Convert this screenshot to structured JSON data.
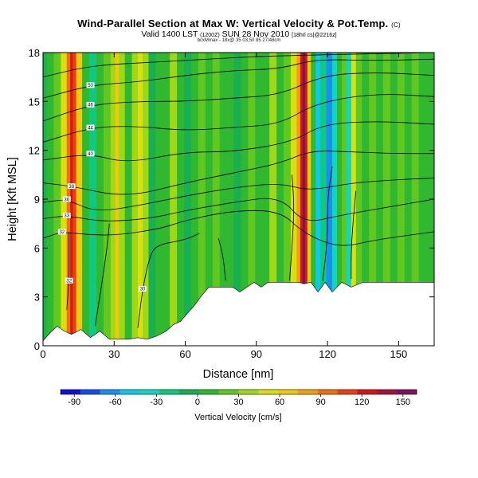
{
  "header": {
    "title": "Wind-Parallel Section at Max W: Vertical Velocity & Pot.Temp.",
    "title_tag": "(C)",
    "subtitle": "Valid 1400 LST",
    "subtitle_small1": "(1200Z)",
    "subtitle_main": "SUN 28 Nov 2010",
    "subtitle_small2": "[18hrl cs|@2216z]",
    "line3": "bcxMmax - 18x@ 35 03,50 85 27/48cm"
  },
  "chart_data": {
    "type": "heatmap",
    "xlabel": "Distance [nm]",
    "ylabel": "Height [Kft MSL]",
    "xlim": [
      0,
      165
    ],
    "ylim": [
      0,
      18
    ],
    "xticks": [
      0,
      30,
      60,
      90,
      120,
      150
    ],
    "yticks": [
      0,
      3,
      6,
      9,
      12,
      15,
      18
    ],
    "colorbar": {
      "label": "Vertical Velocity [cm/s]",
      "ticks": [
        -90,
        -60,
        -30,
        0,
        30,
        60,
        90,
        120,
        150
      ],
      "range": [
        -100,
        160
      ],
      "colors": [
        "#1010d8",
        "#1050e8",
        "#1890f0",
        "#10c8e8",
        "#10d8c0",
        "#10c880",
        "#18b050",
        "#30b830",
        "#60c820",
        "#a0d818",
        "#d8e010",
        "#f0c810",
        "#f0a010",
        "#f07010",
        "#e84010",
        "#d01818",
        "#a81040",
        "#801060"
      ]
    },
    "columns": [
      {
        "x": 0,
        "w": 0.0
      },
      {
        "x": 3,
        "w": 8
      },
      {
        "x": 6,
        "w": 22
      },
      {
        "x": 9,
        "w": 55
      },
      {
        "x": 11,
        "w": 95
      },
      {
        "x": 12,
        "w": 130
      },
      {
        "x": 13,
        "w": 115
      },
      {
        "x": 15,
        "w": 60
      },
      {
        "x": 18,
        "w": 5
      },
      {
        "x": 21,
        "w": -15
      },
      {
        "x": 24,
        "w": 10
      },
      {
        "x": 27,
        "w": 20
      },
      {
        "x": 30,
        "w": 40
      },
      {
        "x": 31,
        "w": 70
      },
      {
        "x": 33,
        "w": 40
      },
      {
        "x": 36,
        "w": 15
      },
      {
        "x": 39,
        "w": 30
      },
      {
        "x": 41,
        "w": 55
      },
      {
        "x": 43,
        "w": 40
      },
      {
        "x": 46,
        "w": -10
      },
      {
        "x": 49,
        "w": 5
      },
      {
        "x": 52,
        "w": 15
      },
      {
        "x": 55,
        "w": 35
      },
      {
        "x": 58,
        "w": 15
      },
      {
        "x": 61,
        "w": -5
      },
      {
        "x": 64,
        "w": 10
      },
      {
        "x": 67,
        "w": 25
      },
      {
        "x": 70,
        "w": 10
      },
      {
        "x": 73,
        "w": 20
      },
      {
        "x": 76,
        "w": 5
      },
      {
        "x": 79,
        "w": 15
      },
      {
        "x": 82,
        "w": -5
      },
      {
        "x": 85,
        "w": 10
      },
      {
        "x": 88,
        "w": 25
      },
      {
        "x": 91,
        "w": 5
      },
      {
        "x": 94,
        "w": 15
      },
      {
        "x": 97,
        "w": 30
      },
      {
        "x": 100,
        "w": 15
      },
      {
        "x": 103,
        "w": 25
      },
      {
        "x": 106,
        "w": 45
      },
      {
        "x": 108,
        "w": 80
      },
      {
        "x": 109,
        "w": 125
      },
      {
        "x": 110,
        "w": 155
      },
      {
        "x": 111,
        "w": 120
      },
      {
        "x": 112,
        "w": 60
      },
      {
        "x": 114,
        "w": 10
      },
      {
        "x": 116,
        "w": -45
      },
      {
        "x": 118,
        "w": -25
      },
      {
        "x": 121,
        "w": -70
      },
      {
        "x": 123,
        "w": -40
      },
      {
        "x": 125,
        "w": 10
      },
      {
        "x": 127,
        "w": 25
      },
      {
        "x": 129,
        "w": -30
      },
      {
        "x": 131,
        "w": 55
      },
      {
        "x": 133,
        "w": 25
      },
      {
        "x": 136,
        "w": 15
      },
      {
        "x": 139,
        "w": 25
      },
      {
        "x": 142,
        "w": 10
      },
      {
        "x": 145,
        "w": 20
      },
      {
        "x": 148,
        "w": 15
      },
      {
        "x": 151,
        "w": 25
      },
      {
        "x": 154,
        "w": 10
      },
      {
        "x": 157,
        "w": 20
      },
      {
        "x": 160,
        "w": 15
      },
      {
        "x": 163,
        "w": 10
      },
      {
        "x": 165,
        "w": 15
      }
    ],
    "terrain": [
      [
        0,
        0.3
      ],
      [
        3,
        0.8
      ],
      [
        6,
        1.2
      ],
      [
        9,
        0.9
      ],
      [
        12,
        0.7
      ],
      [
        16,
        1.0
      ],
      [
        20,
        0.5
      ],
      [
        24,
        0.9
      ],
      [
        28,
        0.4
      ],
      [
        32,
        0.4
      ],
      [
        36,
        0.4
      ],
      [
        40,
        0.5
      ],
      [
        44,
        0.4
      ],
      [
        48,
        0.6
      ],
      [
        52,
        0.9
      ],
      [
        55,
        1.3
      ],
      [
        58,
        1.5
      ],
      [
        61,
        2.0
      ],
      [
        64,
        2.5
      ],
      [
        67,
        3.1
      ],
      [
        70,
        3.6
      ],
      [
        75,
        3.6
      ],
      [
        80,
        3.6
      ],
      [
        83,
        3.3
      ],
      [
        86,
        3.6
      ],
      [
        89,
        3.9
      ],
      [
        92,
        3.6
      ],
      [
        95,
        3.9
      ],
      [
        100,
        3.9
      ],
      [
        105,
        3.9
      ],
      [
        108,
        3.9
      ],
      [
        110,
        3.8
      ],
      [
        113,
        3.9
      ],
      [
        116,
        3.3
      ],
      [
        119,
        3.9
      ],
      [
        122,
        3.3
      ],
      [
        126,
        3.9
      ],
      [
        130,
        3.6
      ],
      [
        135,
        3.9
      ],
      [
        140,
        3.9
      ],
      [
        145,
        3.9
      ],
      [
        150,
        3.9
      ],
      [
        155,
        3.9
      ],
      [
        160,
        3.9
      ],
      [
        165,
        3.9
      ]
    ],
    "isentropes": [
      {
        "id": "c1",
        "label": "32",
        "pts": [
          [
            10,
            2.2
          ],
          [
            11,
            4
          ],
          [
            11,
            5.5
          ],
          [
            11,
            7
          ]
        ]
      },
      {
        "id": "c2",
        "label": "",
        "pts": [
          [
            22,
            1.2
          ],
          [
            25,
            4
          ],
          [
            27,
            6
          ],
          [
            28,
            7.5
          ]
        ]
      },
      {
        "id": "c3",
        "label": "30",
        "pts": [
          [
            40,
            1.1
          ],
          [
            42,
            3.5
          ],
          [
            45,
            5.5
          ],
          [
            48,
            6.2
          ],
          [
            60,
            6.5
          ],
          [
            66,
            6.9
          ]
        ]
      },
      {
        "id": "c4",
        "label": "32",
        "pts": [
          [
            0,
            6.6
          ],
          [
            8,
            7.0
          ],
          [
            20,
            6.8
          ],
          [
            32,
            6.8
          ],
          [
            50,
            7.2
          ],
          [
            60,
            7.7
          ],
          [
            80,
            8.3
          ],
          [
            100,
            8.3
          ],
          [
            110,
            6.9
          ],
          [
            125,
            6.0
          ],
          [
            140,
            6.5
          ],
          [
            165,
            7.0
          ]
        ]
      },
      {
        "id": "c5",
        "label": "33",
        "pts": [
          [
            0,
            7.8
          ],
          [
            10,
            8.0
          ],
          [
            25,
            7.6
          ],
          [
            45,
            7.8
          ],
          [
            60,
            8.3
          ],
          [
            80,
            8.8
          ],
          [
            100,
            9.2
          ],
          [
            110,
            7.5
          ],
          [
            125,
            8.0
          ],
          [
            145,
            8.5
          ],
          [
            165,
            9.0
          ]
        ]
      },
      {
        "id": "c6",
        "label": "36",
        "pts": [
          [
            0,
            8.8
          ],
          [
            10,
            9.0
          ],
          [
            22,
            8.2
          ],
          [
            40,
            8.6
          ],
          [
            60,
            9.2
          ],
          [
            80,
            9.7
          ],
          [
            100,
            10.0
          ],
          [
            112,
            9.5
          ],
          [
            130,
            10.0
          ],
          [
            150,
            10.2
          ],
          [
            165,
            10.3
          ]
        ]
      },
      {
        "id": "c7",
        "label": "38",
        "pts": [
          [
            0,
            10.0
          ],
          [
            12,
            9.8
          ],
          [
            35,
            9.1
          ],
          [
            60,
            10.0
          ],
          [
            80,
            10.6
          ],
          [
            100,
            11.2
          ],
          [
            113,
            12.0
          ],
          [
            130,
            11.9
          ],
          [
            150,
            11.8
          ],
          [
            165,
            11.8
          ]
        ]
      },
      {
        "id": "c8",
        "label": "40",
        "pts": [
          [
            0,
            11.4
          ],
          [
            20,
            11.8
          ],
          [
            35,
            11.2
          ],
          [
            60,
            11.9
          ],
          [
            80,
            11.9
          ],
          [
            105,
            12.5
          ],
          [
            118,
            13.6
          ],
          [
            140,
            13.8
          ],
          [
            165,
            13.6
          ]
        ]
      },
      {
        "id": "c9",
        "label": "44",
        "pts": [
          [
            0,
            12.5
          ],
          [
            20,
            13.4
          ],
          [
            38,
            13.5
          ],
          [
            60,
            13.2
          ],
          [
            80,
            13.4
          ],
          [
            100,
            13.6
          ],
          [
            115,
            14.9
          ],
          [
            140,
            15.5
          ],
          [
            165,
            15.3
          ]
        ]
      },
      {
        "id": "c10",
        "label": "46",
        "pts": [
          [
            0,
            13.8
          ],
          [
            20,
            14.8
          ],
          [
            40,
            15.0
          ],
          [
            60,
            15.0
          ],
          [
            80,
            15.2
          ],
          [
            100,
            15.4
          ],
          [
            118,
            16.6
          ],
          [
            140,
            16.8
          ],
          [
            165,
            16.6
          ]
        ]
      },
      {
        "id": "c11",
        "label": "50",
        "pts": [
          [
            0,
            15.2
          ],
          [
            20,
            16.0
          ],
          [
            40,
            16.2
          ],
          [
            60,
            16.6
          ],
          [
            80,
            16.9
          ],
          [
            100,
            17.0
          ],
          [
            115,
            17.6
          ],
          [
            140,
            17.5
          ],
          [
            165,
            17.6
          ]
        ]
      },
      {
        "id": "c12",
        "label": "",
        "pts": [
          [
            0,
            16.5
          ],
          [
            20,
            17.2
          ],
          [
            45,
            17.4
          ],
          [
            70,
            17.6
          ],
          [
            95,
            17.8
          ],
          [
            165,
            18
          ]
        ]
      },
      {
        "id": "c13",
        "label": "",
        "pts": [
          [
            130,
            4.1
          ],
          [
            130,
            6.0
          ],
          [
            131,
            8.0
          ],
          [
            132,
            9.5
          ]
        ]
      },
      {
        "id": "c14",
        "label": "",
        "pts": [
          [
            104,
            4.0
          ],
          [
            105,
            6.0
          ],
          [
            106,
            8.5
          ],
          [
            105,
            10.5
          ]
        ]
      },
      {
        "id": "c15",
        "label": "",
        "pts": [
          [
            118,
            4.0
          ],
          [
            120,
            6.5
          ],
          [
            120,
            9.0
          ],
          [
            122,
            11
          ]
        ]
      },
      {
        "id": "c16",
        "label": "",
        "pts": [
          [
            77,
            4
          ],
          [
            76,
            5.5
          ],
          [
            74,
            6.6
          ]
        ]
      }
    ]
  }
}
